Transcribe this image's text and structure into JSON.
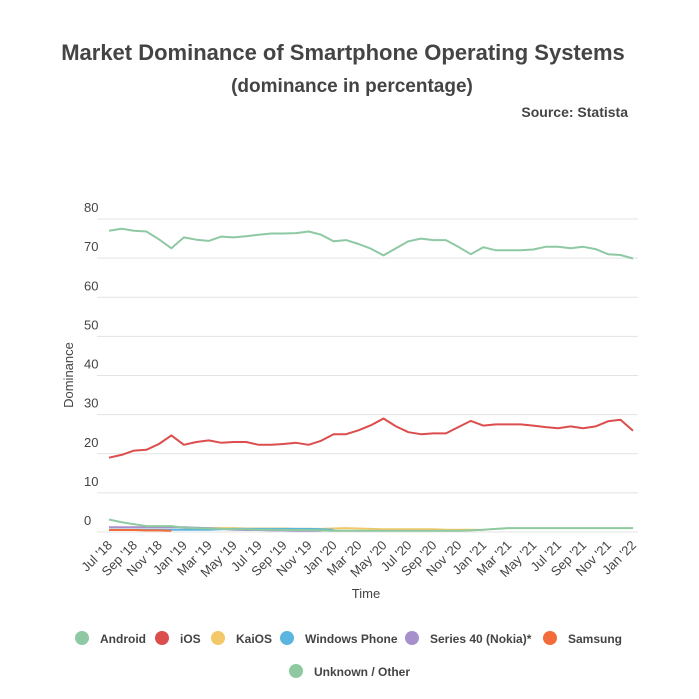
{
  "chart_data": {
    "type": "line",
    "title": "Market Dominance of Smartphone Operating Systems",
    "subtitle": "(dominance in percentage)",
    "source": "Source: Statista",
    "y_label": "Dominance",
    "x_label": "Time",
    "categories": [
      "Jul '18",
      null,
      "Sep '18",
      null,
      "Nov '18",
      null,
      "Jan '19",
      null,
      "Mar '19",
      null,
      "May '19",
      null,
      "Jul '19",
      null,
      "Sep '19",
      null,
      "Nov '19",
      null,
      "Jan '20",
      null,
      "Mar '20",
      null,
      "May '20",
      null,
      "Jul '20",
      null,
      "Sep '20",
      null,
      "Nov '20",
      null,
      "Jan '21",
      null,
      "Mar '21",
      null,
      "May '21",
      null,
      "Jul '21",
      null,
      "Sep '21",
      null,
      "Nov '21",
      null,
      "Jan '22"
    ],
    "ylim": [
      0,
      80
    ],
    "yticks": [
      0,
      10,
      20,
      30,
      40,
      50,
      60,
      70,
      80
    ],
    "grid": true,
    "series": [
      {
        "name": "Android",
        "color": "#8ec9a4",
        "values": [
          77,
          77.5,
          77,
          76.8,
          74.8,
          72.5,
          75.3,
          74.7,
          74.4,
          75.5,
          75.3,
          75.6,
          76,
          76.3,
          76.3,
          76.4,
          76.8,
          76,
          74.3,
          74.6,
          73.6,
          72.4,
          70.7,
          72.5,
          74.3,
          75,
          74.6,
          74.6,
          72.9,
          71,
          72.8,
          72,
          72,
          72,
          72.2,
          72.9,
          72.9,
          72.5,
          72.9,
          72.3,
          71,
          70.8,
          69.9
        ]
      },
      {
        "name": "iOS",
        "color": "#dc4d4d",
        "values": [
          19,
          19.7,
          20.8,
          21,
          22.5,
          24.7,
          22.3,
          23,
          23.4,
          22.8,
          23,
          23,
          22.3,
          22.3,
          22.5,
          22.8,
          22.3,
          23.3,
          25,
          25,
          26,
          27.3,
          29,
          27,
          25.5,
          25,
          25.2,
          25.2,
          26.8,
          28.4,
          27.2,
          27.5,
          27.5,
          27.5,
          27.2,
          26.8,
          26.5,
          27,
          26.5,
          27,
          28.3,
          28.7,
          25.9
        ]
      },
      {
        "name": "KaiOS",
        "color": "#f2c868",
        "values": [
          null,
          null,
          null,
          null,
          null,
          null,
          0.9,
          0.9,
          1,
          1,
          1,
          0.9,
          0.9,
          0.9,
          0.9,
          0.8,
          0.8,
          0.8,
          0.9,
          1,
          0.9,
          0.8,
          0.7,
          0.7,
          0.7,
          0.7,
          0.7,
          0.6,
          0.6,
          0.6,
          0.5,
          null,
          null,
          null,
          null,
          null,
          null,
          null,
          null,
          null,
          null,
          null,
          null
        ]
      },
      {
        "name": "Windows Phone",
        "color": "#5bb6df",
        "values": [
          0.6,
          0.6,
          0.6,
          0.6,
          0.6,
          0.6,
          0.6,
          0.6,
          0.6,
          0.7,
          0.8,
          0.8,
          0.8,
          0.8,
          0.8,
          0.8,
          0.8,
          0.7,
          0.6,
          null,
          null,
          null,
          null,
          null,
          null,
          null,
          null,
          null,
          null,
          null,
          null,
          null,
          null,
          null,
          null,
          null,
          null,
          null,
          null,
          null,
          null,
          null,
          null
        ]
      },
      {
        "name": "Series 40 (Nokia)*",
        "color": "#a78fcc",
        "values": [
          1.2,
          1.2,
          1.2,
          1.2,
          1.2,
          1.2,
          1.2,
          1.1,
          1,
          0.8,
          0.6,
          0.5,
          0.5,
          0.4,
          0.4,
          0.3,
          0.3,
          0.3,
          null,
          null,
          null,
          null,
          null,
          null,
          null,
          null,
          null,
          null,
          null,
          null,
          null,
          null,
          null,
          null,
          null,
          null,
          null,
          null,
          null,
          null,
          null,
          null,
          null
        ]
      },
      {
        "name": "Samsung",
        "color": "#f26b38",
        "values": [
          0.5,
          0.5,
          0.5,
          0.4,
          0.4,
          0.3,
          null,
          null,
          null,
          null,
          null,
          null,
          null,
          null,
          null,
          null,
          null,
          null,
          null,
          null,
          null,
          null,
          null,
          null,
          null,
          null,
          null,
          null,
          null,
          null,
          null,
          null,
          null,
          null,
          null,
          null,
          null,
          null,
          null,
          null,
          null,
          null,
          null
        ]
      },
      {
        "name": "Unknown / Other",
        "color": "#8ec9a0",
        "values": [
          3.2,
          2.5,
          2,
          1.5,
          1.5,
          1.5,
          1.1,
          1,
          0.9,
          0.8,
          0.7,
          0.7,
          0.6,
          0.6,
          0.5,
          0.5,
          0.5,
          0.4,
          0.3,
          0.3,
          0.3,
          0.3,
          0.3,
          0.3,
          0.3,
          0.3,
          0.3,
          0.3,
          0.3,
          0.4,
          0.6,
          0.8,
          1,
          1,
          1,
          1,
          1,
          1,
          1,
          1,
          1,
          1,
          1
        ]
      }
    ]
  }
}
